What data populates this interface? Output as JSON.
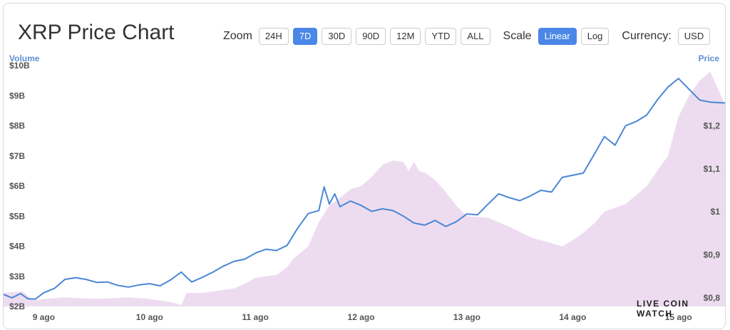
{
  "header": {
    "title": "XRP Price Chart",
    "zoom_label": "Zoom",
    "zoom_options": [
      "24H",
      "7D",
      "30D",
      "90D",
      "12M",
      "YTD",
      "ALL"
    ],
    "zoom_selected": "7D",
    "scale_label": "Scale",
    "scale_options": [
      "Linear",
      "Log"
    ],
    "scale_selected": "Linear",
    "currency_label": "Currency:",
    "currency_value": "USD"
  },
  "brand": "LIVE COIN WATCH",
  "colors": {
    "price_line": "#4a87d6",
    "volume_area": "#eddcf0",
    "active_button": "#4a87e6",
    "axis_title": "#5b8fd8"
  },
  "chart_data": {
    "type": "line",
    "title": "XRP Price Chart",
    "x_ticks": [
      "9 ago",
      "10 ago",
      "11 ago",
      "12 ago",
      "13 ago",
      "14 ago",
      "15 ago"
    ],
    "xlim": [
      8.62,
      15.44
    ],
    "left_axis": {
      "title": "Volume",
      "ticks": [
        "$2B",
        "$3B",
        "$4B",
        "$5B",
        "$6B",
        "$7B",
        "$8B",
        "$9B",
        "$10B"
      ],
      "ylim": [
        2,
        10
      ]
    },
    "right_axis": {
      "title": "Price",
      "ticks": [
        "$0,8",
        "$0,9",
        "$1",
        "$1,1",
        "$1,2"
      ],
      "ylim": [
        0.78,
        1.34
      ]
    },
    "grid": false,
    "legend": "none",
    "series": [
      {
        "name": "Price",
        "axis": "right",
        "x": [
          8.62,
          8.7,
          8.78,
          8.85,
          8.92,
          9.0,
          9.1,
          9.2,
          9.3,
          9.4,
          9.5,
          9.6,
          9.7,
          9.8,
          9.9,
          10.0,
          10.1,
          10.2,
          10.3,
          10.35,
          10.4,
          10.5,
          10.6,
          10.7,
          10.8,
          10.9,
          11.0,
          11.1,
          11.2,
          11.3,
          11.4,
          11.5,
          11.6,
          11.65,
          11.7,
          11.75,
          11.8,
          11.9,
          12.0,
          12.1,
          12.2,
          12.3,
          12.4,
          12.5,
          12.6,
          12.7,
          12.8,
          12.9,
          13.0,
          13.1,
          13.2,
          13.3,
          13.4,
          13.5,
          13.6,
          13.7,
          13.8,
          13.9,
          14.0,
          14.1,
          14.2,
          14.3,
          14.4,
          14.5,
          14.6,
          14.7,
          14.8,
          14.9,
          15.0,
          15.1,
          15.2,
          15.3,
          15.44
        ],
        "values": [
          0.808,
          0.8,
          0.81,
          0.798,
          0.797,
          0.812,
          0.822,
          0.843,
          0.847,
          0.843,
          0.836,
          0.837,
          0.829,
          0.825,
          0.83,
          0.833,
          0.828,
          0.842,
          0.86,
          0.848,
          0.837,
          0.848,
          0.86,
          0.874,
          0.885,
          0.89,
          0.904,
          0.913,
          0.91,
          0.922,
          0.962,
          0.996,
          1.003,
          1.058,
          1.018,
          1.042,
          1.012,
          1.025,
          1.015,
          1.001,
          1.007,
          1.003,
          0.99,
          0.974,
          0.969,
          0.98,
          0.966,
          0.977,
          0.995,
          0.993,
          1.018,
          1.042,
          1.033,
          1.026,
          1.037,
          1.05,
          1.046,
          1.08,
          1.085,
          1.09,
          1.132,
          1.175,
          1.155,
          1.2,
          1.21,
          1.225,
          1.26,
          1.29,
          1.31,
          1.285,
          1.26,
          1.255,
          1.253
        ]
      },
      {
        "name": "Volume",
        "axis": "left",
        "x": [
          8.62,
          8.8,
          8.9,
          9.0,
          9.2,
          9.5,
          9.8,
          10.0,
          10.2,
          10.3,
          10.35,
          10.5,
          10.8,
          10.9,
          11.0,
          11.2,
          11.3,
          11.35,
          11.5,
          11.6,
          11.7,
          11.8,
          11.9,
          12.0,
          12.1,
          12.2,
          12.3,
          12.4,
          12.45,
          12.5,
          12.55,
          12.6,
          12.7,
          12.8,
          12.9,
          13.0,
          13.2,
          13.4,
          13.6,
          13.8,
          13.9,
          14.0,
          14.1,
          14.2,
          14.3,
          14.5,
          14.7,
          14.8,
          14.9,
          15.0,
          15.1,
          15.2,
          15.3,
          15.44
        ],
        "values": [
          2.45,
          2.5,
          2.2,
          2.25,
          2.3,
          2.25,
          2.3,
          2.25,
          2.15,
          2.05,
          2.45,
          2.45,
          2.6,
          2.75,
          2.95,
          3.05,
          3.3,
          3.55,
          4.0,
          4.8,
          5.35,
          5.6,
          5.9,
          6.0,
          6.3,
          6.7,
          6.85,
          6.8,
          6.5,
          6.8,
          6.5,
          6.45,
          6.2,
          5.8,
          5.35,
          5.0,
          4.95,
          4.65,
          4.3,
          4.1,
          4.0,
          4.2,
          4.45,
          4.75,
          5.15,
          5.4,
          6.0,
          6.5,
          7.0,
          8.3,
          9.0,
          9.5,
          9.8,
          8.7
        ]
      }
    ]
  }
}
